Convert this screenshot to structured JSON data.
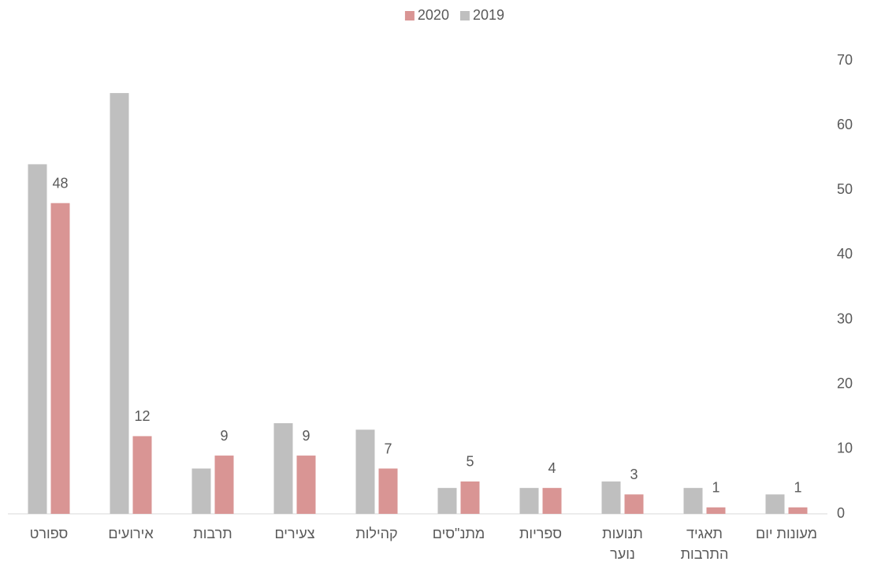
{
  "chart_data": {
    "type": "bar",
    "categories": [
      "ספורט",
      "אירועים",
      "תרבות",
      "צעירים",
      "קהילות",
      "מתנ\"סים",
      "ספריות",
      "תנועות נוער",
      "תאגיד התרבות",
      "מעונות יום"
    ],
    "series": [
      {
        "name": "2019",
        "color": "#bfbfbf",
        "values": [
          54,
          65,
          7,
          14,
          13,
          4,
          4,
          5,
          4,
          3
        ]
      },
      {
        "name": "2020",
        "color": "#d99594",
        "values": [
          48,
          12,
          9,
          9,
          7,
          5,
          4,
          3,
          1,
          1
        ]
      }
    ],
    "data_labels_series": "2020",
    "ylim": [
      0,
      70
    ],
    "yticks": [
      0,
      10,
      20,
      30,
      40,
      50,
      60,
      70
    ],
    "y_axis_side": "right",
    "grid": false
  }
}
